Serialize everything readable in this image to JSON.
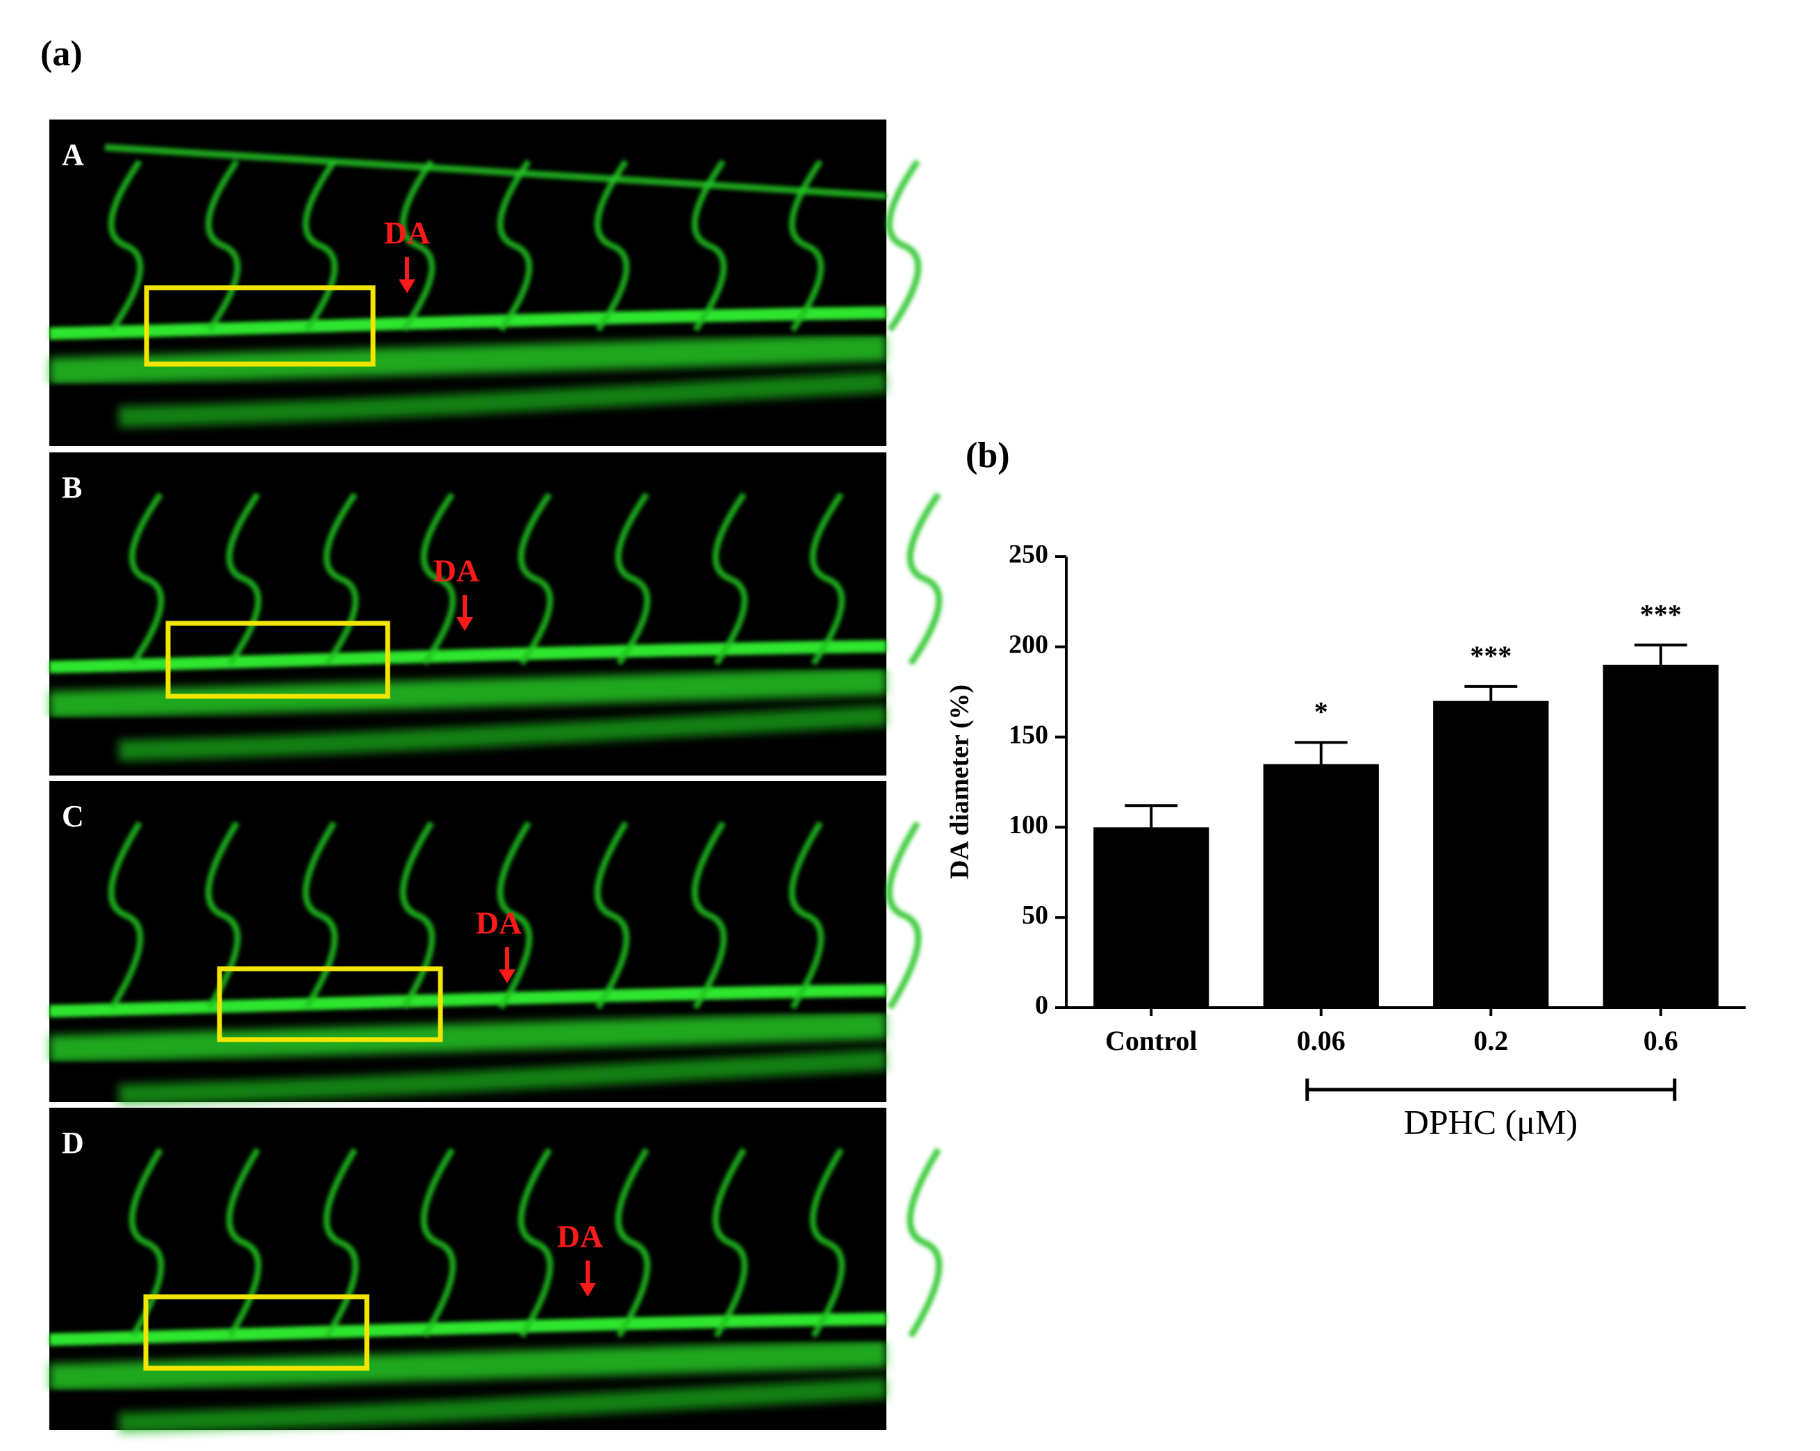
{
  "figure": {
    "label": "(a)",
    "panels": [
      {
        "label": "A",
        "annotation": "DA"
      },
      {
        "label": "B",
        "annotation": "DA"
      },
      {
        "label": "C",
        "annotation": "DA"
      },
      {
        "label": "D",
        "annotation": "DA"
      }
    ]
  },
  "chart_data": {
    "type": "bar",
    "label": "(b)",
    "categories": [
      "Control",
      "0.06",
      "0.2",
      "0.6"
    ],
    "values": [
      100,
      135,
      170,
      190
    ],
    "errors": [
      12,
      12,
      8,
      11
    ],
    "significance": [
      null,
      "*",
      "***",
      "***"
    ],
    "color": "#000000",
    "ylabel": "DA diameter (%)",
    "group_label": "DPHC (μM)",
    "ylim": [
      0,
      250
    ],
    "yticks": [
      0,
      50,
      100,
      150,
      200,
      250
    ]
  }
}
